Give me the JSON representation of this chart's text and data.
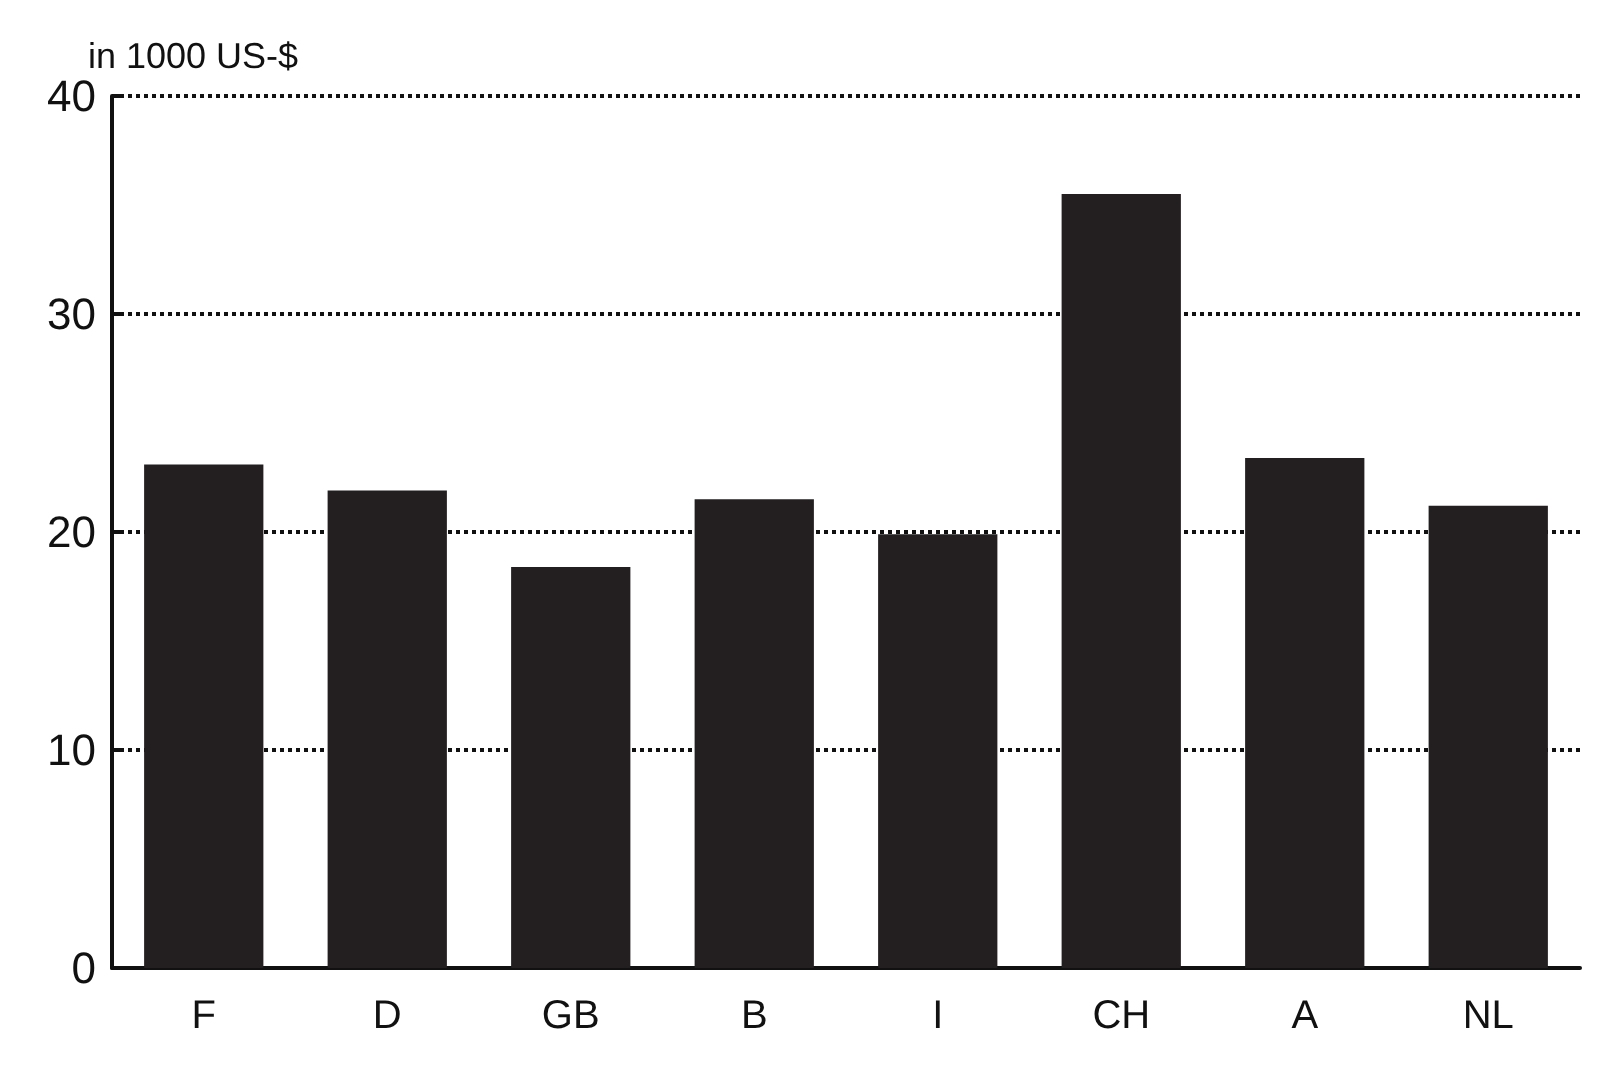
{
  "chart_data": {
    "type": "bar",
    "ylabel": "in 1000 US-$",
    "categories": [
      "F",
      "D",
      "GB",
      "B",
      "I",
      "CH",
      "A",
      "NL"
    ],
    "values": [
      23.1,
      21.9,
      18.4,
      21.5,
      19.9,
      35.5,
      23.4,
      21.2
    ],
    "color": "#231f20",
    "ylim": [
      0,
      40
    ],
    "yticks": [
      0,
      10,
      20,
      30,
      40
    ],
    "grid": "y"
  }
}
